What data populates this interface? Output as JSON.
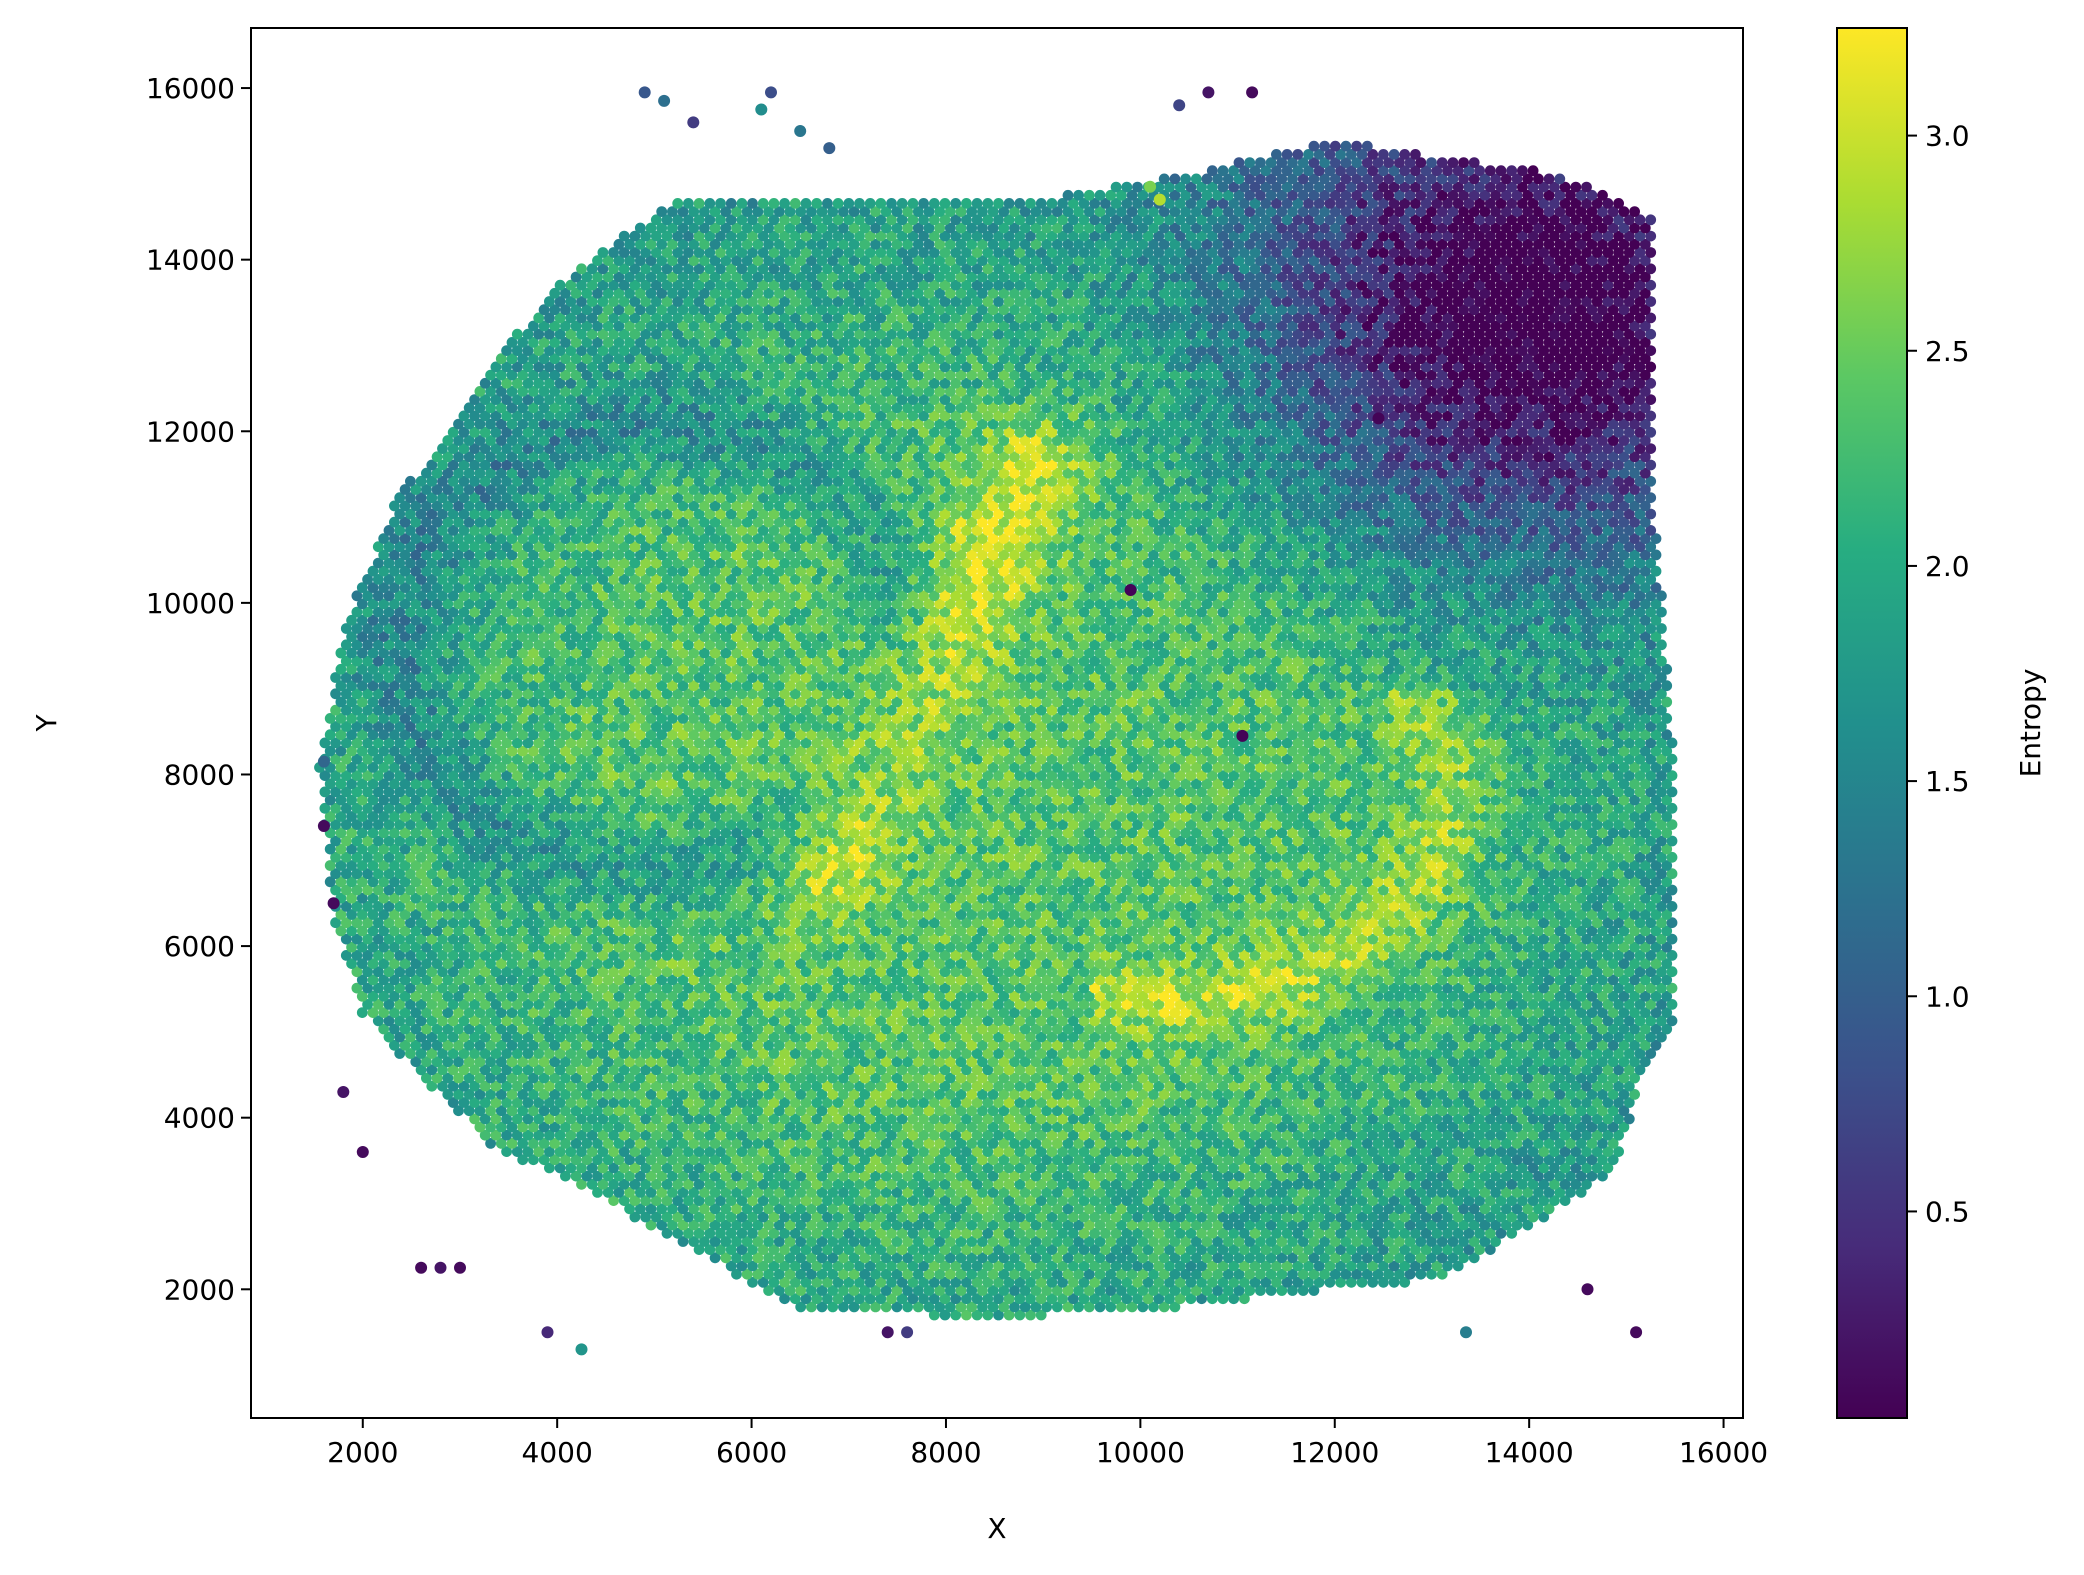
{
  "chart_data": {
    "type": "scatter",
    "title": "",
    "xlabel": "X",
    "ylabel": "Y",
    "xlim": [
      850,
      16200
    ],
    "ylim": [
      500,
      16700
    ],
    "xticks": [
      2000,
      4000,
      6000,
      8000,
      10000,
      12000,
      14000,
      16000
    ],
    "yticks": [
      2000,
      4000,
      6000,
      8000,
      10000,
      12000,
      14000,
      16000
    ],
    "grid": false,
    "colorbar": {
      "label": "Entropy",
      "colormap": "viridis",
      "range": [
        0.02,
        3.25
      ],
      "ticks": [
        0.5,
        1.0,
        1.5,
        2.0,
        2.5,
        3.0
      ],
      "tick_labels": [
        "0.5",
        "1.0",
        "1.5",
        "2.0",
        "2.5",
        "3.0"
      ]
    },
    "marker": "circle",
    "point_spacing": 110,
    "tissue_region": {
      "description_points_approx": [
        [
          1550,
          8100
        ],
        [
          1700,
          6300
        ],
        [
          2000,
          5200
        ],
        [
          2500,
          4600
        ],
        [
          3300,
          3700
        ],
        [
          4200,
          3200
        ],
        [
          5200,
          2600
        ],
        [
          6400,
          1800
        ],
        [
          7800,
          1700
        ],
        [
          9000,
          1700
        ],
        [
          10500,
          1800
        ],
        [
          12000,
          2000
        ],
        [
          13000,
          2100
        ],
        [
          14000,
          2700
        ],
        [
          14900,
          3400
        ],
        [
          15100,
          4300
        ],
        [
          15500,
          5000
        ],
        [
          15500,
          8000
        ],
        [
          15300,
          11000
        ],
        [
          15300,
          14500
        ],
        [
          14300,
          15000
        ],
        [
          13000,
          15200
        ],
        [
          12000,
          15400
        ],
        [
          10500,
          15000
        ],
        [
          9000,
          14700
        ],
        [
          7000,
          14700
        ],
        [
          5200,
          14700
        ],
        [
          4000,
          13700
        ],
        [
          3200,
          12600
        ],
        [
          2300,
          11100
        ],
        [
          1800,
          9700
        ]
      ]
    },
    "features": [
      {
        "kind": "high_entropy_band",
        "from": [
          6800,
          7000
        ],
        "to": [
          8900,
          11600
        ],
        "value": 3.0
      },
      {
        "kind": "high_entropy_arc",
        "center": [
          10300,
          7800
        ],
        "value": 2.9
      },
      {
        "kind": "low_entropy_region",
        "center": [
          13800,
          13200
        ],
        "value": 0.3
      },
      {
        "kind": "medium_entropy_ring",
        "center": [
          5000,
          9500
        ],
        "value": 1.4
      }
    ],
    "outlier_points": [
      {
        "x": 4900,
        "y": 15950,
        "entropy": 0.9
      },
      {
        "x": 5100,
        "y": 15850,
        "entropy": 1.2
      },
      {
        "x": 5400,
        "y": 15600,
        "entropy": 0.6
      },
      {
        "x": 6200,
        "y": 15950,
        "entropy": 0.8
      },
      {
        "x": 6100,
        "y": 15750,
        "entropy": 1.6
      },
      {
        "x": 6500,
        "y": 15500,
        "entropy": 1.3
      },
      {
        "x": 6800,
        "y": 15300,
        "entropy": 1.0
      },
      {
        "x": 10700,
        "y": 15950,
        "entropy": 0.2
      },
      {
        "x": 11150,
        "y": 15950,
        "entropy": 0.1
      },
      {
        "x": 10400,
        "y": 15800,
        "entropy": 0.7
      },
      {
        "x": 10100,
        "y": 14850,
        "entropy": 2.6
      },
      {
        "x": 10200,
        "y": 14700,
        "entropy": 2.9
      },
      {
        "x": 3900,
        "y": 1500,
        "entropy": 0.4
      },
      {
        "x": 4250,
        "y": 1300,
        "entropy": 1.7
      },
      {
        "x": 7400,
        "y": 1500,
        "entropy": 0.2
      },
      {
        "x": 7600,
        "y": 1500,
        "entropy": 0.6
      },
      {
        "x": 13350,
        "y": 1500,
        "entropy": 1.4
      },
      {
        "x": 14600,
        "y": 2000,
        "entropy": 0.1
      },
      {
        "x": 15100,
        "y": 1500,
        "entropy": 0.1
      },
      {
        "x": 2600,
        "y": 2250,
        "entropy": 0.1
      },
      {
        "x": 2800,
        "y": 2250,
        "entropy": 0.2
      },
      {
        "x": 3000,
        "y": 2250,
        "entropy": 0.1
      },
      {
        "x": 1600,
        "y": 8150,
        "entropy": 1.1
      },
      {
        "x": 1600,
        "y": 7400,
        "entropy": 0.1
      },
      {
        "x": 1700,
        "y": 6500,
        "entropy": 0.1
      },
      {
        "x": 1800,
        "y": 4300,
        "entropy": 0.2
      },
      {
        "x": 2000,
        "y": 3600,
        "entropy": 0.1
      },
      {
        "x": 11050,
        "y": 8450,
        "entropy": 0.05
      },
      {
        "x": 9900,
        "y": 10150,
        "entropy": 0.05
      },
      {
        "x": 12450,
        "y": 12150,
        "entropy": 0.05
      }
    ]
  }
}
